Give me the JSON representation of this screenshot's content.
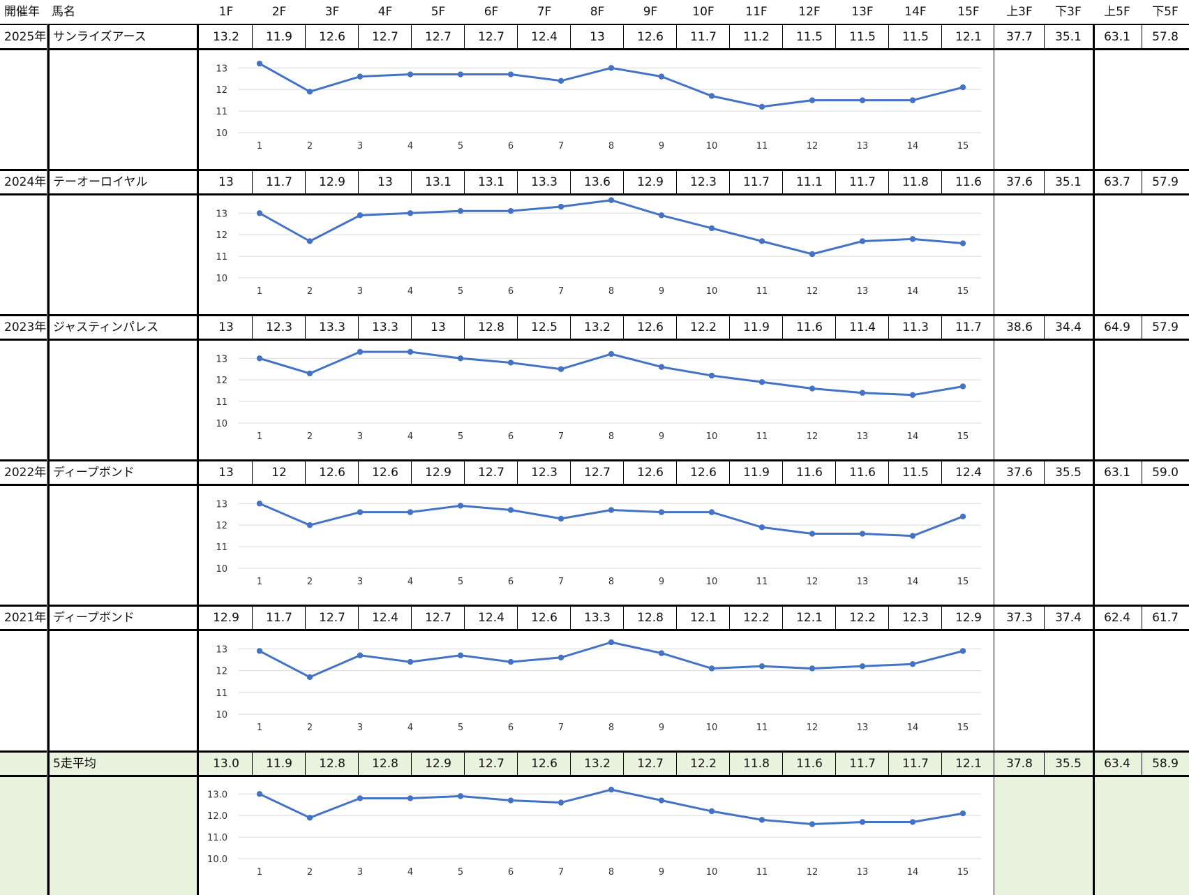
{
  "header": {
    "year_label": "開催年",
    "name_label": "馬名",
    "furlongs": [
      "1F",
      "2F",
      "3F",
      "4F",
      "5F",
      "6F",
      "7F",
      "8F",
      "9F",
      "10F",
      "11F",
      "12F",
      "13F",
      "14F",
      "15F"
    ],
    "summary": [
      "上3F",
      "下3F",
      "上5F",
      "下5F"
    ]
  },
  "chart_data": [
    {
      "type": "line",
      "x": [
        1,
        2,
        3,
        4,
        5,
        6,
        7,
        8,
        9,
        10,
        11,
        12,
        13,
        14,
        15
      ],
      "values": [
        13.2,
        11.9,
        12.6,
        12.7,
        12.7,
        12.7,
        12.4,
        13,
        12.6,
        11.7,
        11.2,
        11.5,
        11.5,
        11.5,
        12.1
      ],
      "value_labels": [
        "13.2",
        "11.9",
        "12.6",
        "12.7",
        "12.7",
        "12.7",
        "12.4",
        "13",
        "12.6",
        "11.7",
        "11.2",
        "11.5",
        "11.5",
        "11.5",
        "12.1"
      ],
      "yticks": [
        "10",
        "11",
        "12",
        "13"
      ],
      "ylim": [
        10,
        13.3
      ],
      "year": "2025年",
      "horse": "サンライズアース",
      "summary": [
        "37.7",
        "35.1",
        "63.1",
        "57.8"
      ],
      "highlight": false
    },
    {
      "type": "line",
      "x": [
        1,
        2,
        3,
        4,
        5,
        6,
        7,
        8,
        9,
        10,
        11,
        12,
        13,
        14,
        15
      ],
      "values": [
        13,
        11.7,
        12.9,
        13,
        13.1,
        13.1,
        13.3,
        13.6,
        12.9,
        12.3,
        11.7,
        11.1,
        11.7,
        11.8,
        11.6
      ],
      "value_labels": [
        "13",
        "11.7",
        "12.9",
        "13",
        "13.1",
        "13.1",
        "13.3",
        "13.6",
        "12.9",
        "12.3",
        "11.7",
        "11.1",
        "11.7",
        "11.8",
        "11.6"
      ],
      "yticks": [
        "10",
        "11",
        "12",
        "13"
      ],
      "ylim": [
        10,
        13.3
      ],
      "year": "2024年",
      "horse": "テーオーロイヤル",
      "summary": [
        "37.6",
        "35.1",
        "63.7",
        "57.9"
      ],
      "highlight": false
    },
    {
      "type": "line",
      "x": [
        1,
        2,
        3,
        4,
        5,
        6,
        7,
        8,
        9,
        10,
        11,
        12,
        13,
        14,
        15
      ],
      "values": [
        13,
        12.3,
        13.3,
        13.3,
        13,
        12.8,
        12.5,
        13.2,
        12.6,
        12.2,
        11.9,
        11.6,
        11.4,
        11.3,
        11.7
      ],
      "value_labels": [
        "13",
        "12.3",
        "13.3",
        "13.3",
        "13",
        "12.8",
        "12.5",
        "13.2",
        "12.6",
        "12.2",
        "11.9",
        "11.6",
        "11.4",
        "11.3",
        "11.7"
      ],
      "yticks": [
        "10",
        "11",
        "12",
        "13"
      ],
      "ylim": [
        10,
        13.3
      ],
      "year": "2023年",
      "horse": "ジャスティンパレス",
      "summary": [
        "38.6",
        "34.4",
        "64.9",
        "57.9"
      ],
      "highlight": false
    },
    {
      "type": "line",
      "x": [
        1,
        2,
        3,
        4,
        5,
        6,
        7,
        8,
        9,
        10,
        11,
        12,
        13,
        14,
        15
      ],
      "values": [
        13,
        12,
        12.6,
        12.6,
        12.9,
        12.7,
        12.3,
        12.7,
        12.6,
        12.6,
        11.9,
        11.6,
        11.6,
        11.5,
        12.4
      ],
      "value_labels": [
        "13",
        "12",
        "12.6",
        "12.6",
        "12.9",
        "12.7",
        "12.3",
        "12.7",
        "12.6",
        "12.6",
        "11.9",
        "11.6",
        "11.6",
        "11.5",
        "12.4"
      ],
      "yticks": [
        "10",
        "11",
        "12",
        "13"
      ],
      "ylim": [
        10,
        13.3
      ],
      "year": "2022年",
      "horse": "ディープボンド",
      "summary": [
        "37.6",
        "35.5",
        "63.1",
        "59.0"
      ],
      "highlight": false
    },
    {
      "type": "line",
      "x": [
        1,
        2,
        3,
        4,
        5,
        6,
        7,
        8,
        9,
        10,
        11,
        12,
        13,
        14,
        15
      ],
      "values": [
        12.9,
        11.7,
        12.7,
        12.4,
        12.7,
        12.4,
        12.6,
        13.3,
        12.8,
        12.1,
        12.2,
        12.1,
        12.2,
        12.3,
        12.9
      ],
      "value_labels": [
        "12.9",
        "11.7",
        "12.7",
        "12.4",
        "12.7",
        "12.4",
        "12.6",
        "13.3",
        "12.8",
        "12.1",
        "12.2",
        "12.1",
        "12.2",
        "12.3",
        "12.9"
      ],
      "yticks": [
        "10",
        "11",
        "12",
        "13"
      ],
      "ylim": [
        10,
        13.3
      ],
      "year": "2021年",
      "horse": "ディープボンド",
      "summary": [
        "37.3",
        "37.4",
        "62.4",
        "61.7"
      ],
      "highlight": false
    },
    {
      "type": "line",
      "x": [
        1,
        2,
        3,
        4,
        5,
        6,
        7,
        8,
        9,
        10,
        11,
        12,
        13,
        14,
        15
      ],
      "values": [
        13.0,
        11.9,
        12.8,
        12.8,
        12.9,
        12.7,
        12.6,
        13.2,
        12.7,
        12.2,
        11.8,
        11.6,
        11.7,
        11.7,
        12.1
      ],
      "value_labels": [
        "13.0",
        "11.9",
        "12.8",
        "12.8",
        "12.9",
        "12.7",
        "12.6",
        "13.2",
        "12.7",
        "12.2",
        "11.8",
        "11.6",
        "11.7",
        "11.7",
        "12.1"
      ],
      "yticks": [
        "10.0",
        "11.0",
        "12.0",
        "13.0"
      ],
      "ylim": [
        10,
        13.3
      ],
      "year": "",
      "horse": "5走平均",
      "summary": [
        "37.8",
        "35.5",
        "63.4",
        "58.9"
      ],
      "highlight": true
    }
  ],
  "colors": {
    "line": "#4472c4",
    "grid": "#d9d9d9",
    "highlight": "#e8f2dc"
  }
}
